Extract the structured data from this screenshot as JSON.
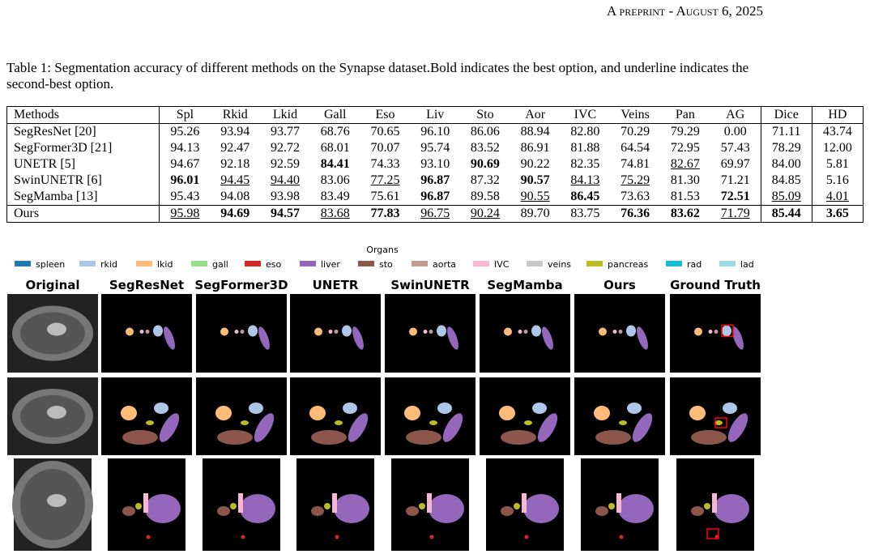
{
  "header": {
    "running_title": "A preprint - August 6, 2025"
  },
  "table": {
    "caption": "Table 1: Segmentation accuracy of different methods on the Synapse dataset.Bold indicates the best option, and underline indicates the second-best option.",
    "columns": [
      "Methods",
      "Spl",
      "Rkid",
      "Lkid",
      "Gall",
      "Eso",
      "Liv",
      "Sto",
      "Aor",
      "IVC",
      "Veins",
      "Pan",
      "AG",
      "Dice",
      "HD"
    ],
    "rows": [
      [
        "SegResNet [20]",
        "95.26",
        "93.94",
        "93.77",
        "68.76",
        "70.65",
        "96.10",
        "86.06",
        "88.94",
        "82.80",
        "70.29",
        "79.29",
        "0.00",
        "71.11",
        "43.74"
      ],
      [
        "SegFormer3D [21]",
        "94.13",
        "92.47",
        "92.72",
        "68.01",
        "70.07",
        "95.74",
        "83.52",
        "86.91",
        "81.88",
        "64.54",
        "72.95",
        "57.43",
        "78.29",
        "12.00"
      ],
      [
        "UNETR [5]",
        "94.67",
        "92.18",
        "92.59",
        "84.41",
        "74.33",
        "93.10",
        "90.69",
        "90.22",
        "82.35",
        "74.81",
        "82.67",
        "69.97",
        "84.00",
        "5.81"
      ],
      [
        "SwinUNETR [6]",
        "96.01",
        "94.45",
        "94.40",
        "83.06",
        "77.25",
        "96.87",
        "87.32",
        "90.57",
        "84.13",
        "75.29",
        "81.30",
        "71.21",
        "84.85",
        "5.16"
      ],
      [
        "SegMamba [13]",
        "95.43",
        "94.08",
        "93.98",
        "83.49",
        "75.61",
        "96.87",
        "89.58",
        "90.55",
        "86.45",
        "73.63",
        "81.53",
        "72.51",
        "85.09",
        "4.01"
      ],
      [
        "Ours",
        "95.98",
        "94.69",
        "94.57",
        "83.68",
        "77.83",
        "96.75",
        "90.24",
        "89.70",
        "83.75",
        "76.36",
        "83.62",
        "71.79",
        "85.44",
        "3.65"
      ]
    ]
  },
  "figure": {
    "legend_title": "Organs",
    "legend": [
      {
        "name": "spleen",
        "color": "#1f77b4"
      },
      {
        "name": "rkid",
        "color": "#aec7e8"
      },
      {
        "name": "lkid",
        "color": "#ffbb78"
      },
      {
        "name": "gall",
        "color": "#98df8a"
      },
      {
        "name": "eso",
        "color": "#d62728"
      },
      {
        "name": "liver",
        "color": "#9467bd"
      },
      {
        "name": "sto",
        "color": "#8c564b"
      },
      {
        "name": "aorta",
        "color": "#c49c94"
      },
      {
        "name": "IVC",
        "color": "#f7b6d2"
      },
      {
        "name": "veins",
        "color": "#c7c7c7"
      },
      {
        "name": "pancreas",
        "color": "#bcbd22"
      },
      {
        "name": "rad",
        "color": "#17becf"
      },
      {
        "name": "lad",
        "color": "#9edae5"
      }
    ],
    "columns": [
      "Original",
      "SegResNet",
      "SegFormer3D",
      "UNETR",
      "SwinUNETR",
      "SegMamba",
      "Ours",
      "Ground Truth"
    ]
  }
}
